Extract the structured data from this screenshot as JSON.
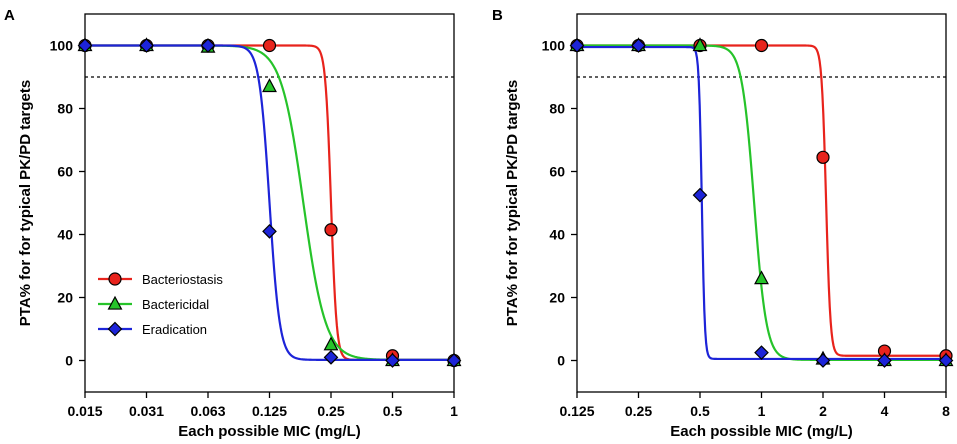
{
  "chart_data": [
    {
      "type": "line",
      "panel_label": "A",
      "xlabel": "Each possible MIC (mg/L)",
      "ylabel": "PTA% for for typical PK/PD targets",
      "categories": [
        "0.015",
        "0.031",
        "0.063",
        "0.125",
        "0.25",
        "0.5",
        "1"
      ],
      "ylim": [
        -10,
        110
      ],
      "yticks": [
        0,
        20,
        40,
        60,
        80,
        100
      ],
      "reference_line": {
        "y": 90,
        "style": "dashed"
      },
      "legend": {
        "position": "lower-left"
      },
      "series": [
        {
          "name": "Bacteriostasis",
          "color": "#e8231c",
          "marker": "circle",
          "values": [
            100,
            100,
            100,
            100,
            41.5,
            1.5,
            0
          ],
          "fit": {
            "bottom": 0.2,
            "top": 100,
            "mid_index": 4.0,
            "slope": 22
          }
        },
        {
          "name": "Bactericidal",
          "color": "#26c32a",
          "marker": "triangle",
          "values": [
            100,
            100,
            99.5,
            87,
            5,
            0,
            0
          ],
          "fit": {
            "bottom": 0.2,
            "top": 100,
            "mid_index": 3.55,
            "slope": 5.5
          }
        },
        {
          "name": "Eradication",
          "color": "#1d24d8",
          "marker": "diamond",
          "values": [
            100,
            100,
            100,
            41,
            1,
            0,
            0
          ],
          "fit": {
            "bottom": 0.2,
            "top": 100,
            "mid_index": 3.0,
            "slope": 12
          }
        }
      ]
    },
    {
      "type": "line",
      "panel_label": "B",
      "xlabel": "Each possible MIC (mg/L)",
      "ylabel": "PTA% for for typical PK/PD targets",
      "categories": [
        "0.125",
        "0.25",
        "0.5",
        "1",
        "2",
        "4",
        "8"
      ],
      "ylim": [
        -10,
        110
      ],
      "yticks": [
        0,
        20,
        40,
        60,
        80,
        100
      ],
      "reference_line": {
        "y": 90,
        "style": "dashed"
      },
      "series": [
        {
          "name": "Bacteriostasis",
          "color": "#e8231c",
          "marker": "circle",
          "values": [
            100,
            100,
            100,
            100,
            64.5,
            3,
            1.5
          ],
          "fit": {
            "bottom": 1.5,
            "top": 100,
            "mid_index": 4.05,
            "slope": 28
          }
        },
        {
          "name": "Bactericidal",
          "color": "#26c32a",
          "marker": "triangle",
          "values": [
            100,
            100,
            100,
            26,
            0.5,
            0,
            0
          ],
          "fit": {
            "bottom": 0.2,
            "top": 100,
            "mid_index": 2.88,
            "slope": 10
          }
        },
        {
          "name": "Eradication",
          "color": "#1d24d8",
          "marker": "diamond",
          "values": [
            100,
            100,
            52.5,
            2.5,
            0,
            0,
            0
          ],
          "fit": {
            "bottom": 0.5,
            "top": 99.5,
            "mid_index": 2.03,
            "slope": 42
          }
        }
      ]
    }
  ]
}
